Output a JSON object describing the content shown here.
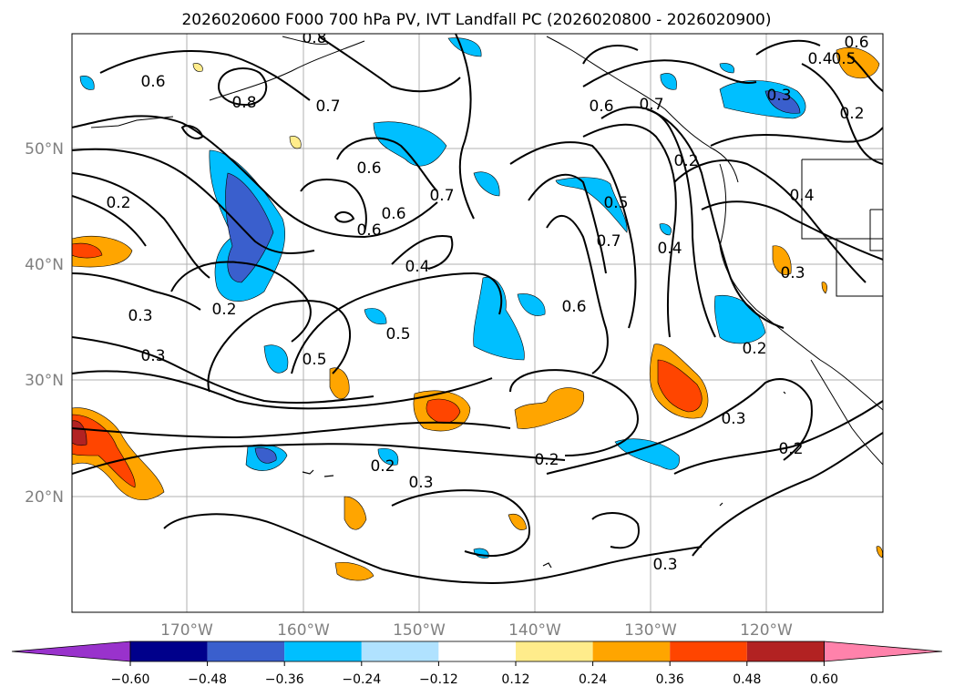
{
  "title": "2026020600 F000 700 hPa PV, IVT Landfall PC (2026020800 - 2026020900)",
  "lat_labels": [
    "50°N",
    "40°N",
    "30°N",
    "20°N"
  ],
  "lon_labels": [
    "170°W",
    "160°W",
    "150°W",
    "140°W",
    "130°W",
    "120°W"
  ],
  "contour_labels": [
    "0.6",
    "0.8",
    "0.7",
    "0.6",
    "0.8",
    "0.6",
    "0.7",
    "0.6",
    "0.5",
    "0.7",
    "0.4",
    "0.2",
    "0.2",
    "0.3",
    "0.3",
    "0.2",
    "0.5",
    "0.5",
    "0.4",
    "0.6",
    "0.2",
    "0.3",
    "0.2",
    "0.3",
    "0.2",
    "0.3",
    "0.4",
    "0.3",
    "0.2",
    "0.7",
    "0.6",
    "0.6",
    "0.3",
    "0.4",
    "0.5",
    "0.2"
  ],
  "colorbar": {
    "ticks": [
      "−0.60",
      "−0.48",
      "−0.36",
      "−0.24",
      "−0.12",
      "0.12",
      "0.24",
      "0.36",
      "0.48",
      "0.60"
    ],
    "colors": [
      "#9932CC",
      "#00008B",
      "#3A5FCD",
      "#00BFFF",
      "#B0E2FF",
      "#FFFFFF",
      "#FFEC8B",
      "#FFA500",
      "#FF4500",
      "#B22222",
      "#FF82AB"
    ]
  }
}
